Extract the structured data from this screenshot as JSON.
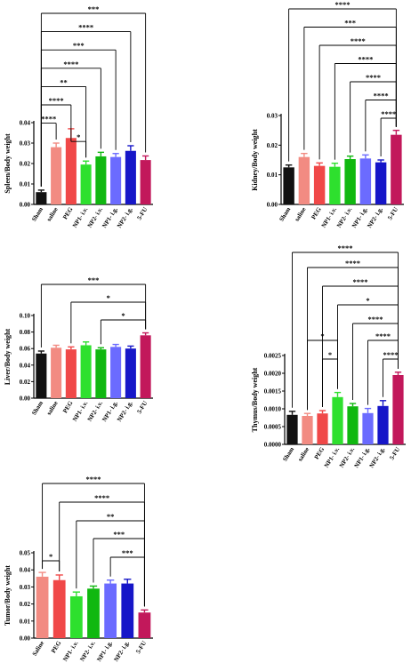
{
  "chart_data": [
    {
      "type": "bar",
      "ylabel": "Spleen/Body weight",
      "ylim": [
        0,
        0.04
      ],
      "yticks": [
        "0.00",
        "0.01",
        "0.02",
        "0.03",
        "0.04"
      ],
      "categories": [
        "Sham",
        "saline",
        "PEG",
        "NP1- i.v.",
        "NP2- i.v.",
        "NP1- i.g.",
        "NP2- i.g.",
        "5-FU"
      ],
      "values": [
        0.006,
        0.028,
        0.0325,
        0.0195,
        0.0235,
        0.0232,
        0.0262,
        0.0217
      ],
      "errors": [
        0.001,
        0.002,
        0.0045,
        0.0017,
        0.002,
        0.0017,
        0.0025,
        0.002
      ],
      "colors": [
        "#111111",
        "#f28b82",
        "#f04848",
        "#2ee02e",
        "#10b810",
        "#6b6bff",
        "#1616c8",
        "#c2185b"
      ],
      "significance": [
        {
          "from": 0,
          "to": 7,
          "label": "***"
        },
        {
          "from": 0,
          "to": 6,
          "label": "****"
        },
        {
          "from": 0,
          "to": 5,
          "label": "***"
        },
        {
          "from": 0,
          "to": 4,
          "label": "****"
        },
        {
          "from": 0,
          "to": 3,
          "label": "**"
        },
        {
          "from": 0,
          "to": 2,
          "label": "****"
        },
        {
          "from": 0,
          "to": 1,
          "label": "****"
        },
        {
          "from": 2,
          "to": 3,
          "label": "*"
        }
      ]
    },
    {
      "type": "bar",
      "ylabel": "Kidney/Body weight",
      "ylim": [
        0,
        0.03
      ],
      "yticks": [
        "0.00",
        "0.01",
        "0.02",
        "0.03"
      ],
      "categories": [
        "Sham",
        "saline",
        "PEG",
        "NP1- i.v.",
        "NP2- i.v.",
        "NP1- i.g.",
        "NP2- i.g.",
        "5-FU"
      ],
      "values": [
        0.0125,
        0.016,
        0.013,
        0.0127,
        0.0153,
        0.0155,
        0.0142,
        0.0235
      ],
      "errors": [
        0.0008,
        0.0012,
        0.001,
        0.0012,
        0.001,
        0.0012,
        0.0008,
        0.0015
      ],
      "colors": [
        "#111111",
        "#f28b82",
        "#f04848",
        "#2ee02e",
        "#10b810",
        "#6b6bff",
        "#1616c8",
        "#c2185b"
      ],
      "significance": [
        {
          "from": 0,
          "to": 7,
          "label": "****"
        },
        {
          "from": 1,
          "to": 7,
          "label": "***"
        },
        {
          "from": 2,
          "to": 7,
          "label": "****"
        },
        {
          "from": 3,
          "to": 7,
          "label": "****"
        },
        {
          "from": 4,
          "to": 7,
          "label": "****"
        },
        {
          "from": 5,
          "to": 7,
          "label": "****"
        },
        {
          "from": 6,
          "to": 7,
          "label": "****"
        }
      ]
    },
    {
      "type": "bar",
      "ylabel": "Liver/Body weight",
      "ylim": [
        0,
        0.1
      ],
      "yticks": [
        "0.00",
        "0.02",
        "0.04",
        "0.06",
        "0.08",
        "0.10"
      ],
      "categories": [
        "Sham",
        "saline",
        "PEG",
        "NP1- i.v.",
        "NP2- i.v.",
        "NP1- i.g.",
        "NP2- i.g.",
        "5-FU"
      ],
      "values": [
        0.054,
        0.061,
        0.059,
        0.064,
        0.059,
        0.062,
        0.06,
        0.076
      ],
      "errors": [
        0.003,
        0.003,
        0.003,
        0.004,
        0.002,
        0.003,
        0.003,
        0.003
      ],
      "colors": [
        "#111111",
        "#f28b82",
        "#f04848",
        "#2ee02e",
        "#10b810",
        "#6b6bff",
        "#1616c8",
        "#c2185b"
      ],
      "significance": [
        {
          "from": 0,
          "to": 7,
          "label": "***"
        },
        {
          "from": 2,
          "to": 7,
          "label": "*"
        },
        {
          "from": 4,
          "to": 7,
          "label": "*"
        }
      ]
    },
    {
      "type": "bar",
      "ylabel": "Thymus/Body weight",
      "ylim": [
        0,
        0.0025
      ],
      "yticks": [
        "0.0000",
        "0.0005",
        "0.0010",
        "0.0015",
        "0.0020",
        "0.0025"
      ],
      "categories": [
        "Sham",
        "saline",
        "PEG",
        "NP1- i.v.",
        "NP2- i.v.",
        "NP1- i.g.",
        "NP2- i.g.",
        "5-FU"
      ],
      "values": [
        0.00083,
        0.0008,
        0.00087,
        0.00133,
        0.00107,
        0.00088,
        0.00108,
        0.00195
      ],
      "errors": [
        0.0001,
        7e-05,
        8e-05,
        0.00013,
        8e-05,
        0.00013,
        0.00015,
        8e-05
      ],
      "colors": [
        "#111111",
        "#f28b82",
        "#f04848",
        "#2ee02e",
        "#10b810",
        "#6b6bff",
        "#1616c8",
        "#c2185b"
      ],
      "significance": [
        {
          "from": 0,
          "to": 7,
          "label": "****"
        },
        {
          "from": 1,
          "to": 7,
          "label": "****"
        },
        {
          "from": 2,
          "to": 7,
          "label": "****"
        },
        {
          "from": 3,
          "to": 7,
          "label": "*"
        },
        {
          "from": 4,
          "to": 7,
          "label": "****"
        },
        {
          "from": 5,
          "to": 7,
          "label": "****"
        },
        {
          "from": 6,
          "to": 7,
          "label": "****"
        },
        {
          "from": 1,
          "to": 3,
          "label": "*"
        },
        {
          "from": 2,
          "to": 3,
          "label": "*"
        }
      ]
    },
    {
      "type": "bar",
      "ylabel": "Tumor/Body weight",
      "ylim": [
        0,
        0.05
      ],
      "yticks": [
        "0.00",
        "0.01",
        "0.02",
        "0.03",
        "0.04",
        "0.05"
      ],
      "categories": [
        "Saline",
        "PEG",
        "NP1- i.v.",
        "NP2- i.v.",
        "NP1- i.g.",
        "NP2- i.g.",
        "5-FU"
      ],
      "values": [
        0.036,
        0.034,
        0.0245,
        0.029,
        0.032,
        0.032,
        0.015
      ],
      "errors": [
        0.0025,
        0.003,
        0.0025,
        0.0015,
        0.002,
        0.0025,
        0.0015
      ],
      "colors": [
        "#f28b82",
        "#f04848",
        "#2ee02e",
        "#10b810",
        "#6b6bff",
        "#1616c8",
        "#c2185b"
      ],
      "significance": [
        {
          "from": 0,
          "to": 6,
          "label": "****"
        },
        {
          "from": 1,
          "to": 6,
          "label": "****"
        },
        {
          "from": 2,
          "to": 6,
          "label": "**"
        },
        {
          "from": 3,
          "to": 6,
          "label": "***"
        },
        {
          "from": 4,
          "to": 6,
          "label": "***"
        },
        {
          "from": 0,
          "to": 1,
          "label": "*"
        }
      ]
    }
  ]
}
